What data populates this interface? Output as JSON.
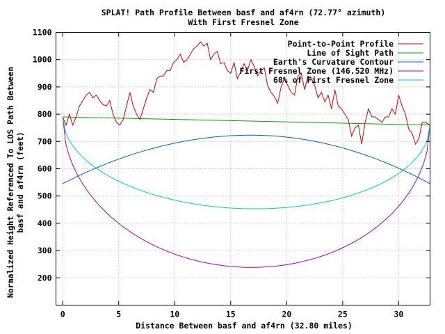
{
  "chart_data": {
    "type": "line",
    "title": "SPLAT! Path Profile Between basf and af4rn (72.77° azimuth)",
    "subtitle": "With First Fresnel Zone",
    "xlabel": "Distance Between basf and af4rn (32.80 miles)",
    "ylabel": "Normalized Height Referenced To LOS Path Between",
    "ylabel2": "basf and af4rn (feet)",
    "xlim": [
      -0.6,
      32.8
    ],
    "ylim": [
      100,
      1100
    ],
    "xticks": [
      0,
      5,
      10,
      15,
      20,
      25,
      30
    ],
    "yticks": [
      200,
      300,
      400,
      500,
      600,
      700,
      800,
      900,
      1000,
      1100
    ],
    "grid": true,
    "legend_position": "top-right",
    "series": [
      {
        "name": "Point-to-Point Profile",
        "color": "#cc0000",
        "x": [
          0,
          0.3,
          0.6,
          0.9,
          1.2,
          1.5,
          1.8,
          2.1,
          2.4,
          2.7,
          3.0,
          3.3,
          3.6,
          3.9,
          4.2,
          4.5,
          4.8,
          5.1,
          5.4,
          5.7,
          6.0,
          6.3,
          6.6,
          6.9,
          7.2,
          7.5,
          7.8,
          8.1,
          8.4,
          8.7,
          9.0,
          9.3,
          9.6,
          9.9,
          10.2,
          10.5,
          10.8,
          11.1,
          11.4,
          11.7,
          12.0,
          12.3,
          12.6,
          12.9,
          13.2,
          13.5,
          13.8,
          14.1,
          14.4,
          14.7,
          15.0,
          15.3,
          15.6,
          15.9,
          16.2,
          16.5,
          16.8,
          17.1,
          17.4,
          17.7,
          18.0,
          18.3,
          18.6,
          18.9,
          19.2,
          19.5,
          19.8,
          20.1,
          20.4,
          20.7,
          21.0,
          21.3,
          21.6,
          21.9,
          22.2,
          22.5,
          22.8,
          23.1,
          23.4,
          23.7,
          24.0,
          24.3,
          24.6,
          24.9,
          25.2,
          25.5,
          25.8,
          26.1,
          26.4,
          26.7,
          27.0,
          27.3,
          27.6,
          27.9,
          28.2,
          28.5,
          28.8,
          29.1,
          29.4,
          29.7,
          30.0,
          30.3,
          30.6,
          30.9,
          31.2,
          31.5,
          31.8,
          32.1,
          32.4,
          32.8
        ],
        "y": [
          790,
          760,
          800,
          760,
          790,
          830,
          850,
          870,
          880,
          860,
          870,
          850,
          835,
          830,
          850,
          800,
          770,
          760,
          780,
          830,
          880,
          830,
          800,
          780,
          820,
          860,
          890,
          880,
          930,
          940,
          940,
          960,
          960,
          990,
          1000,
          1020,
          990,
          1000,
          1020,
          1040,
          1050,
          1065,
          1050,
          1060,
          1000,
          1020,
          1030,
          985,
          990,
          960,
          950,
          990,
          930,
          955,
          985,
          960,
          1000,
          975,
          940,
          960,
          970,
          905,
          880,
          865,
          840,
          900,
          930,
          905,
          880,
          870,
          940,
          950,
          890,
          940,
          930,
          905,
          860,
          880,
          845,
          870,
          820,
          890,
          830,
          820,
          800,
          780,
          720,
          750,
          760,
          690,
          770,
          820,
          790,
          790,
          780,
          770,
          790,
          790,
          820,
          800,
          870,
          830,
          800,
          745,
          730,
          690,
          710,
          770,
          770,
          760
        ]
      },
      {
        "name": "Line of Sight Path",
        "color": "#00a000",
        "x": [
          0,
          32.8
        ],
        "y": [
          790,
          760
        ]
      },
      {
        "name": "Earth's Curvature Contour",
        "color": "#0060c0",
        "shape": "arc",
        "x": [
          0,
          16.8,
          32.8
        ],
        "y": [
          545,
          723,
          545
        ]
      },
      {
        "name": "First Fresnel Zone (146.520 MHz)",
        "color": "#a000c0",
        "shape": "ellipse",
        "x": [
          0,
          17.0,
          32.8
        ],
        "y": [
          790,
          238,
          760
        ]
      },
      {
        "name": "60% of First Fresnel Zone",
        "color": "#00c8c8",
        "shape": "ellipse",
        "x": [
          0,
          17.0,
          32.8
        ],
        "y": [
          790,
          453,
          760
        ]
      }
    ]
  }
}
